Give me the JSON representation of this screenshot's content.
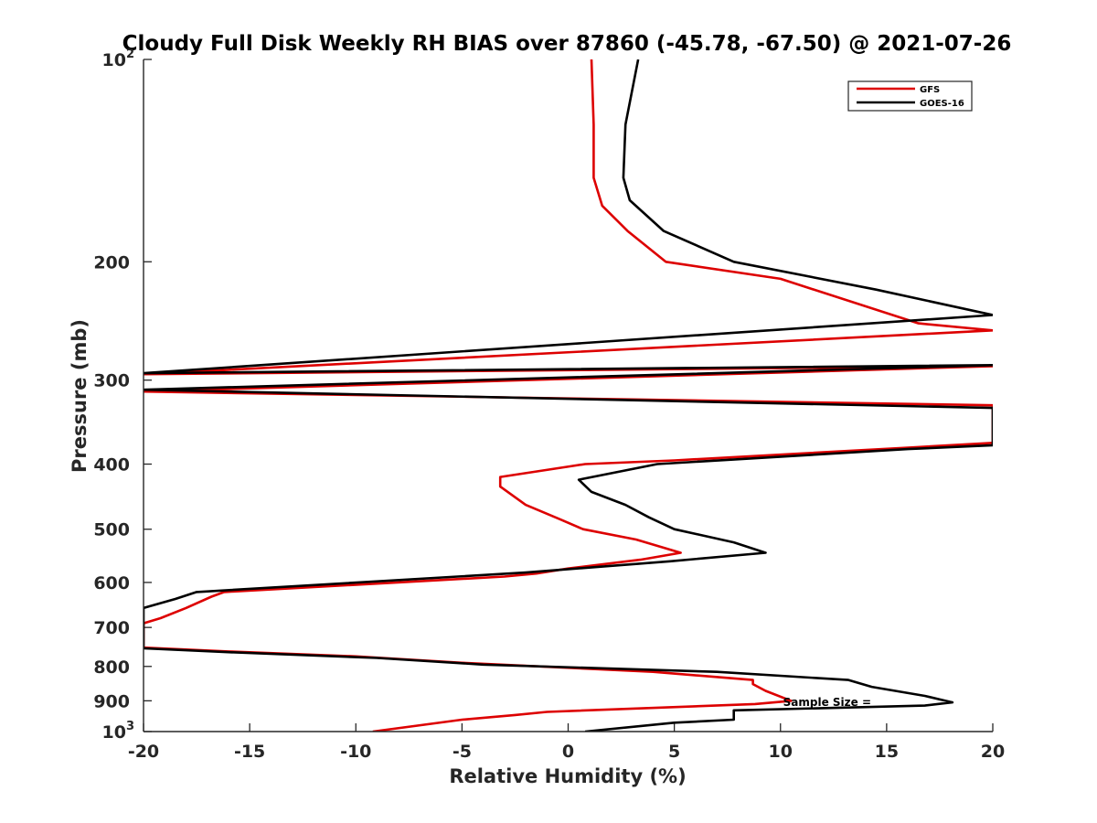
{
  "chart_data": {
    "type": "line",
    "title": "Cloudy Full Disk Weekly RH BIAS over 87860 (-45.78, -67.50) @ 2021-07-26",
    "xlabel": "Relative Humidity (%)",
    "ylabel": "Pressure (mb)",
    "xlim": [
      -20,
      20
    ],
    "ylim": [
      100,
      1000
    ],
    "y_scale": "log",
    "y_reversed": true,
    "grid": false,
    "legend_position": "top-right",
    "x_ticks": [
      "-20",
      "-15",
      "-10",
      "-5",
      "0",
      "5",
      "10",
      "15",
      "20"
    ],
    "y_ticks": [
      {
        "value": 100,
        "base": "10",
        "exp": "2"
      },
      {
        "value": 200,
        "label": "200"
      },
      {
        "value": 300,
        "label": "300"
      },
      {
        "value": 400,
        "label": "400"
      },
      {
        "value": 500,
        "label": "500"
      },
      {
        "value": 600,
        "label": "600"
      },
      {
        "value": 700,
        "label": "700"
      },
      {
        "value": 800,
        "label": "800"
      },
      {
        "value": 900,
        "label": "900"
      },
      {
        "value": 1000,
        "base": "10",
        "exp": "3"
      }
    ],
    "series": [
      {
        "name": "GFS",
        "color": "#dd0000",
        "points": [
          [
            1.1,
            100
          ],
          [
            1.2,
            125
          ],
          [
            1.2,
            150
          ],
          [
            1.6,
            165
          ],
          [
            2.8,
            180
          ],
          [
            4.6,
            200
          ],
          [
            10.0,
            212
          ],
          [
            16.5,
            247
          ],
          [
            20.0,
            253
          ],
          [
            -20.0,
            294
          ],
          [
            20.0,
            286
          ],
          [
            -20.0,
            312
          ],
          [
            20.0,
            327
          ],
          [
            20.0,
            372
          ],
          [
            16.0,
            378
          ],
          [
            5.0,
            395
          ],
          [
            0.8,
            400
          ],
          [
            -3.2,
            418
          ],
          [
            -3.2,
            432
          ],
          [
            -2.0,
            460
          ],
          [
            -0.4,
            483
          ],
          [
            0.7,
            500
          ],
          [
            3.2,
            518
          ],
          [
            5.3,
            542
          ],
          [
            3.4,
            555
          ],
          [
            0.0,
            572
          ],
          [
            -1.5,
            582
          ],
          [
            -3.0,
            588
          ],
          [
            -16.2,
            620
          ],
          [
            -16.8,
            630
          ],
          [
            -18.0,
            655
          ],
          [
            -19.2,
            678
          ],
          [
            -20.0,
            690
          ],
          [
            -20.0,
            750
          ],
          [
            -16.0,
            760
          ],
          [
            -10.0,
            773
          ],
          [
            -5.0,
            790
          ],
          [
            4.0,
            815
          ],
          [
            8.7,
            838
          ],
          [
            8.7,
            850
          ],
          [
            9.3,
            870
          ],
          [
            10.5,
            900
          ],
          [
            8.8,
            910
          ],
          [
            -1.0,
            935
          ],
          [
            -2.5,
            945
          ],
          [
            -5.0,
            960
          ],
          [
            -9.2,
            1000
          ]
        ]
      },
      {
        "name": "GOES-16",
        "color": "#000000",
        "points": [
          [
            3.3,
            100
          ],
          [
            2.7,
            125
          ],
          [
            2.6,
            150
          ],
          [
            2.9,
            162
          ],
          [
            4.5,
            180
          ],
          [
            7.8,
            200
          ],
          [
            14.5,
            220
          ],
          [
            20.0,
            240
          ],
          [
            -20.0,
            293
          ],
          [
            20.0,
            285
          ],
          [
            -20.0,
            310
          ],
          [
            20.0,
            330
          ],
          [
            20.0,
            375
          ],
          [
            16.0,
            380
          ],
          [
            4.2,
            400
          ],
          [
            0.5,
            422
          ],
          [
            1.1,
            440
          ],
          [
            2.7,
            460
          ],
          [
            3.8,
            480
          ],
          [
            5.0,
            500
          ],
          [
            7.8,
            523
          ],
          [
            9.3,
            542
          ],
          [
            4.8,
            558
          ],
          [
            -2.0,
            580
          ],
          [
            -17.5,
            620
          ],
          [
            -18.5,
            635
          ],
          [
            -20.0,
            655
          ],
          [
            -20.0,
            752
          ],
          [
            -16.0,
            762
          ],
          [
            -9.0,
            777
          ],
          [
            -4.0,
            795
          ],
          [
            7.0,
            815
          ],
          [
            13.2,
            838
          ],
          [
            14.3,
            858
          ],
          [
            16.8,
            885
          ],
          [
            18.1,
            905
          ],
          [
            16.8,
            915
          ],
          [
            7.8,
            930
          ],
          [
            7.8,
            960
          ],
          [
            5.0,
            970
          ],
          [
            0.8,
            1000
          ]
        ]
      }
    ],
    "annotations": [
      {
        "text": "Sample Size =",
        "x": 14.0,
        "y": 905
      }
    ]
  }
}
